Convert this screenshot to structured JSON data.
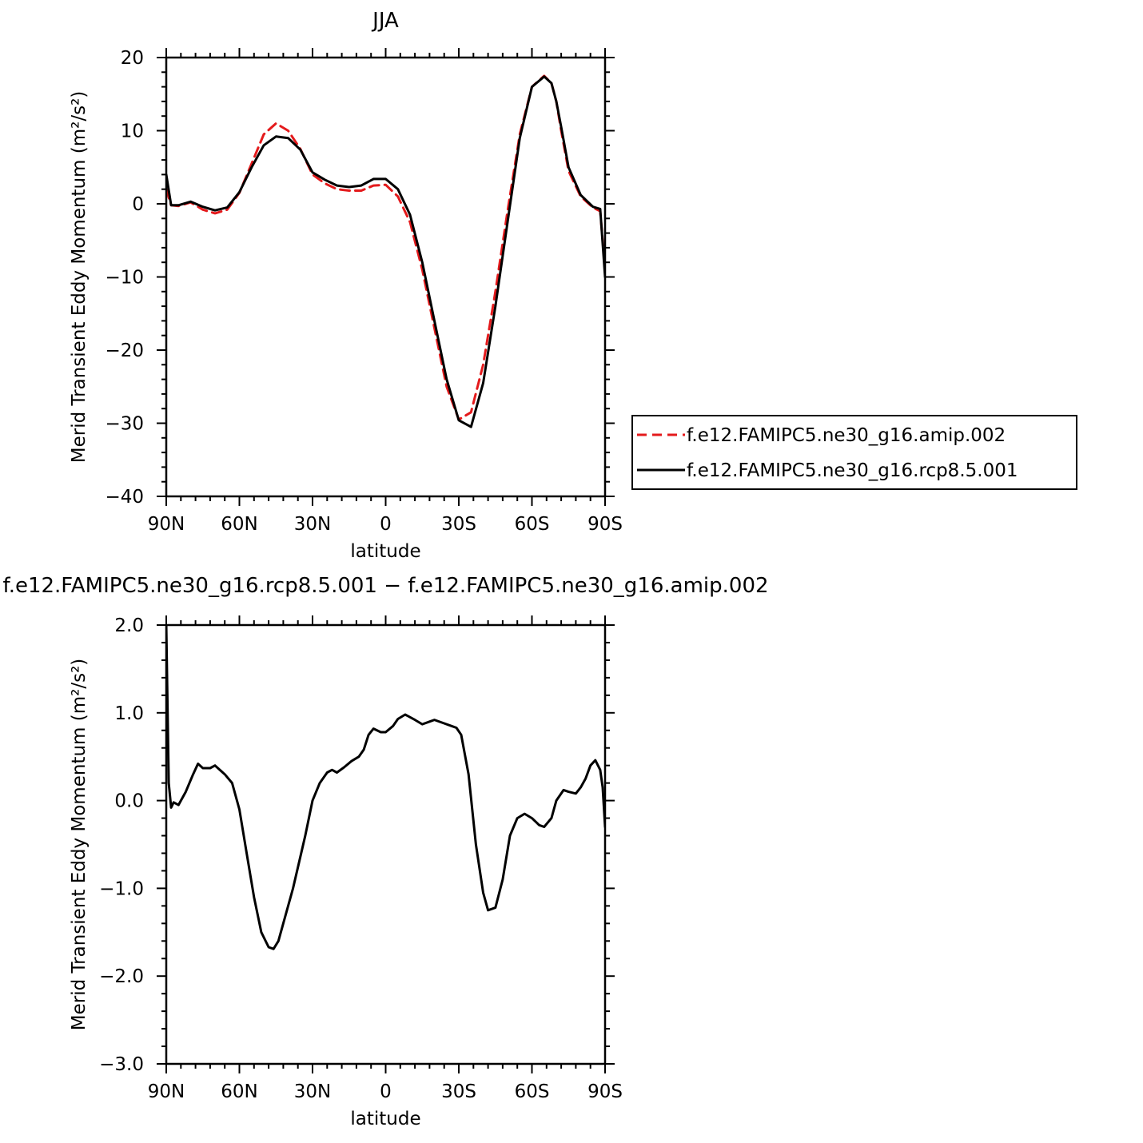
{
  "chart_data": [
    {
      "type": "line",
      "title": "JJA",
      "xlabel": "latitude",
      "ylabel": "Merid Transient Eddy Momentum (m²/s²)",
      "xlim": [
        90,
        -90
      ],
      "ylim": [
        -40,
        20
      ],
      "x_ticks": [
        90,
        60,
        30,
        0,
        -30,
        -60,
        -90
      ],
      "x_tick_labels": [
        "90N",
        "60N",
        "30N",
        "0",
        "30S",
        "60S",
        "90S"
      ],
      "y_ticks": [
        20,
        10,
        0,
        -10,
        -20,
        -30,
        -40
      ],
      "y_tick_labels": [
        "20",
        "10",
        "0",
        "−10",
        "−20",
        "−30",
        "−40"
      ],
      "legend_position": "right",
      "series": [
        {
          "name": "f.e12.FAMIPC5.ne30_g16.amip.002",
          "color": "#e41a1c",
          "dash": "dashed",
          "x": [
            90,
            88,
            85,
            80,
            75,
            70,
            65,
            60,
            55,
            50,
            45,
            40,
            35,
            30,
            25,
            20,
            15,
            10,
            5,
            0,
            -5,
            -10,
            -15,
            -20,
            -25,
            -30,
            -35,
            -40,
            -45,
            -50,
            -55,
            -60,
            -65,
            -68,
            -70,
            -72,
            -75,
            -80,
            -85,
            -88,
            -90
          ],
          "y": [
            2.0,
            -0.2,
            -0.3,
            0.2,
            -0.8,
            -1.3,
            -0.8,
            1.5,
            5.5,
            9.5,
            11.0,
            10.0,
            7.5,
            4.0,
            2.8,
            2.0,
            1.8,
            1.8,
            2.5,
            2.6,
            1.0,
            -2.5,
            -9.0,
            -17.0,
            -25.0,
            -29.5,
            -28.5,
            -22.0,
            -12.0,
            -1.0,
            9.5,
            16.0,
            17.5,
            16.5,
            14.0,
            10.0,
            4.5,
            1.0,
            -0.5,
            -1.0,
            -9.0
          ]
        },
        {
          "name": "f.e12.FAMIPC5.ne30_g16.rcp8.5.001",
          "color": "#000000",
          "dash": "solid",
          "x": [
            90,
            88,
            85,
            80,
            75,
            70,
            65,
            60,
            55,
            50,
            45,
            40,
            35,
            30,
            25,
            20,
            15,
            10,
            5,
            0,
            -5,
            -10,
            -15,
            -20,
            -25,
            -30,
            -35,
            -40,
            -45,
            -50,
            -55,
            -60,
            -65,
            -68,
            -70,
            -72,
            -75,
            -80,
            -85,
            -88,
            -90
          ],
          "y": [
            4.0,
            -0.2,
            -0.2,
            0.3,
            -0.4,
            -0.9,
            -0.5,
            1.6,
            5.0,
            8.0,
            9.2,
            9.0,
            7.4,
            4.3,
            3.3,
            2.5,
            2.3,
            2.5,
            3.4,
            3.4,
            2.0,
            -1.5,
            -8.0,
            -16.0,
            -24.0,
            -29.6,
            -30.5,
            -24.5,
            -14.0,
            -2.5,
            9.0,
            16.0,
            17.4,
            16.5,
            14.0,
            10.5,
            5.0,
            1.2,
            -0.4,
            -0.7,
            -10.0
          ]
        }
      ]
    },
    {
      "type": "line",
      "title": "f.e12.FAMIPC5.ne30_g16.rcp8.5.001 − f.e12.FAMIPC5.ne30_g16.amip.002",
      "xlabel": "latitude",
      "ylabel": "Merid Transient Eddy Momentum (m²/s²)",
      "xlim": [
        90,
        -90
      ],
      "ylim": [
        -3.0,
        2.0
      ],
      "x_ticks": [
        90,
        60,
        30,
        0,
        -30,
        -60,
        -90
      ],
      "x_tick_labels": [
        "90N",
        "60N",
        "30N",
        "0",
        "30S",
        "60S",
        "90S"
      ],
      "y_ticks": [
        2.0,
        1.0,
        0.0,
        -1.0,
        -2.0,
        -3.0
      ],
      "y_tick_labels": [
        "2.0",
        "1.0",
        "0.0",
        "−1.0",
        "−2.0",
        "−3.0"
      ],
      "series": [
        {
          "color": "#000000",
          "dash": "solid",
          "x": [
            90,
            89,
            88,
            87,
            85,
            82,
            79,
            77,
            75,
            72,
            70,
            66,
            63,
            60,
            57,
            54,
            51,
            48,
            46,
            44,
            42,
            38,
            33,
            30,
            27,
            24,
            22,
            20,
            17,
            14,
            11,
            9,
            7,
            5,
            2,
            0,
            -3,
            -5,
            -8,
            -12,
            -15,
            -18,
            -20,
            -24,
            -27,
            -29,
            -31,
            -34,
            -37,
            -40,
            -42,
            -45,
            -48,
            -51,
            -54,
            -57,
            -60,
            -63,
            -65,
            -68,
            -70,
            -73,
            -75,
            -78,
            -80,
            -82,
            -84,
            -86,
            -88,
            -89,
            -90
          ],
          "y": [
            2.0,
            0.2,
            -0.08,
            -0.02,
            -0.05,
            0.1,
            0.3,
            0.42,
            0.37,
            0.37,
            0.4,
            0.3,
            0.2,
            -0.1,
            -0.6,
            -1.1,
            -1.5,
            -1.67,
            -1.69,
            -1.6,
            -1.4,
            -1.0,
            -0.4,
            0.0,
            0.2,
            0.32,
            0.35,
            0.32,
            0.38,
            0.45,
            0.5,
            0.58,
            0.75,
            0.82,
            0.78,
            0.78,
            0.85,
            0.93,
            0.98,
            0.92,
            0.87,
            0.9,
            0.92,
            0.88,
            0.85,
            0.83,
            0.75,
            0.3,
            -0.5,
            -1.05,
            -1.25,
            -1.22,
            -0.9,
            -0.4,
            -0.2,
            -0.15,
            -0.2,
            -0.28,
            -0.3,
            -0.2,
            0.0,
            0.12,
            0.1,
            0.08,
            0.15,
            0.25,
            0.4,
            0.46,
            0.35,
            0.15,
            -0.3
          ]
        }
      ]
    }
  ]
}
